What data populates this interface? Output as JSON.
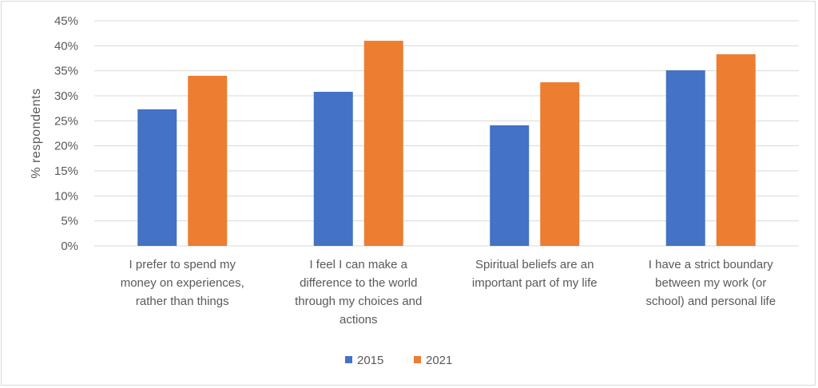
{
  "chart_data": {
    "type": "bar",
    "title": "",
    "xlabel": "",
    "ylabel": "% respondents",
    "ylim": [
      0,
      45
    ],
    "y_ticks": [
      "0%",
      "5%",
      "10%",
      "15%",
      "20%",
      "25%",
      "30%",
      "35%",
      "40%",
      "45%"
    ],
    "grid": true,
    "legend_position": "bottom",
    "categories": [
      [
        "I prefer to spend my",
        "money on experiences,",
        "rather than things"
      ],
      [
        "I feel I can make a",
        "difference to the world",
        "through my choices and",
        "actions"
      ],
      [
        "Spiritual beliefs are an",
        "important part of my life"
      ],
      [
        "I have a strict boundary",
        "between my work (or",
        "school) and personal life"
      ]
    ],
    "series": [
      {
        "name": "2015",
        "color": "#4472c4",
        "values": [
          27.3,
          30.8,
          24.1,
          35.1
        ]
      },
      {
        "name": "2021",
        "color": "#ed7d31",
        "values": [
          34.0,
          41.0,
          32.7,
          38.3
        ]
      }
    ]
  }
}
